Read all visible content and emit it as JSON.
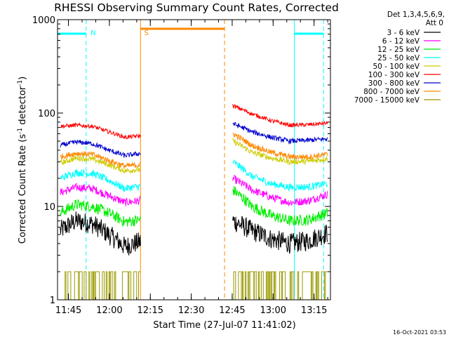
{
  "chart_data": {
    "type": "line",
    "title": "RHESSI Observing Summary Count Rates, Corrected",
    "xlabel": "Start Time (27-Jul-07 11:41:02)",
    "ylabel": {
      "main": "Corrected Count Rate (s",
      "sup1": "-1",
      "mid": " detector",
      "sup2": "-1",
      "end": ")"
    },
    "y_scale": "log",
    "ylim": [
      1,
      1000
    ],
    "y_ticks": [
      {
        "value": 1,
        "label": "1"
      },
      {
        "value": 10,
        "label": "10"
      },
      {
        "value": 100,
        "label": "100"
      },
      {
        "value": 1000,
        "label": "1000"
      }
    ],
    "x_units": "minutes since 11:41:02",
    "xlim": [
      0,
      100
    ],
    "x_ticks": [
      {
        "value": 4,
        "label": "11:45"
      },
      {
        "value": 19,
        "label": "12:00"
      },
      {
        "value": 34,
        "label": "12:15"
      },
      {
        "value": 49,
        "label": "12:30"
      },
      {
        "value": 64,
        "label": "12:45"
      },
      {
        "value": 79,
        "label": "13:00"
      },
      {
        "value": 94,
        "label": "13:15"
      }
    ],
    "legend_header": [
      "Det 1,3,4,5,6,9,",
      "Att 0"
    ],
    "legend_position": "right",
    "gap": {
      "start": 30.5,
      "end": 64.2
    },
    "series": [
      {
        "name": "3 - 6 keV",
        "color": "#000000",
        "left": [
          5.5,
          7,
          6.5,
          5,
          3.7,
          4.2
        ],
        "right": [
          7,
          5.5,
          4.5,
          4.0,
          4.3,
          5.2
        ],
        "noise": 0.25
      },
      {
        "name": "6 - 12 keV",
        "color": "#ff00ff",
        "left": [
          14,
          16,
          15.5,
          13,
          11,
          11.5
        ],
        "right": [
          20,
          15,
          12.5,
          11,
          11.5,
          13.5
        ],
        "noise": 0.1
      },
      {
        "name": "12 - 25 keV",
        "color": "#00ee00",
        "left": [
          8.5,
          10.5,
          10,
          8.5,
          6.8,
          7.2
        ],
        "right": [
          15,
          10,
          8,
          7,
          7.2,
          8.5
        ],
        "noise": 0.14
      },
      {
        "name": "25 - 50 keV",
        "color": "#00ffff",
        "left": [
          20,
          23,
          22.5,
          19,
          15.5,
          16.5
        ],
        "right": [
          30,
          21,
          17.5,
          16,
          16.2,
          17.5
        ],
        "noise": 0.09
      },
      {
        "name": "50 - 100 keV",
        "color": "#cccc00",
        "left": [
          29,
          33,
          32,
          28,
          24,
          25
        ],
        "right": [
          50,
          38,
          33,
          30,
          30.5,
          32.5
        ],
        "noise": 0.07
      },
      {
        "name": "100 - 300 keV",
        "color": "#ff0000",
        "left": [
          72,
          74,
          72,
          63,
          55,
          57
        ],
        "right": [
          120,
          98,
          83,
          74,
          75,
          78
        ],
        "noise": 0.05
      },
      {
        "name": "300 - 800 keV",
        "color": "#0000cc",
        "left": [
          45,
          49,
          47,
          40,
          35,
          37
        ],
        "right": [
          77,
          63,
          55,
          50,
          51,
          53
        ],
        "noise": 0.06
      },
      {
        "name": "800 - 7000 keV",
        "color": "#ff8800",
        "left": [
          34,
          37,
          36,
          31,
          27,
          28
        ],
        "right": [
          60,
          45,
          38,
          34,
          34,
          36
        ],
        "noise": 0.07
      },
      {
        "name": "7000 - 15000 keV",
        "color": "#999900",
        "left": [
          1,
          2,
          1,
          2,
          1,
          2
        ],
        "right": [
          1,
          2,
          1,
          2,
          1,
          2
        ],
        "noise": 0
      }
    ],
    "annotations": [
      {
        "text": "N",
        "x": 10.5,
        "color": "#00ffff"
      },
      {
        "text": "S",
        "x": 30,
        "color": "#ff8800"
      }
    ],
    "stamp": "16-Oct-2021 03:53"
  }
}
